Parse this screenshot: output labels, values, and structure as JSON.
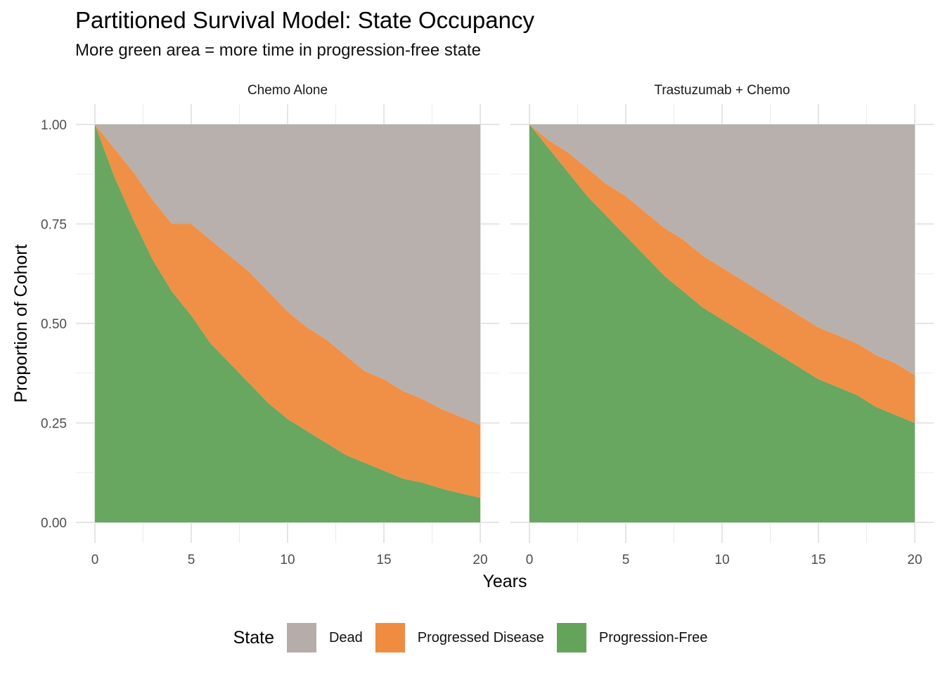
{
  "chart_data": [
    {
      "type": "area",
      "title": "Partitioned Survival Model: State Occupancy",
      "subtitle": "More green area = more time in progression-free state",
      "facet": "Chemo Alone",
      "xlabel": "Years",
      "ylabel": "Proportion of Cohort",
      "xlim": [
        0,
        20
      ],
      "ylim": [
        0,
        1
      ],
      "x_ticks": [
        "0",
        "5",
        "10",
        "15",
        "20"
      ],
      "y_ticks": [
        "0.00",
        "0.25",
        "0.50",
        "0.75",
        "1.00"
      ],
      "grid": true,
      "stacked": true,
      "x": [
        0,
        1,
        2,
        3,
        4,
        5,
        6,
        7,
        8,
        9,
        10,
        11,
        12,
        13,
        14,
        15,
        16,
        17,
        18,
        19,
        20
      ],
      "series": [
        {
          "name": "Progression-Free",
          "values": [
            1.0,
            0.87,
            0.76,
            0.66,
            0.58,
            0.52,
            0.45,
            0.4,
            0.35,
            0.3,
            0.26,
            0.23,
            0.2,
            0.17,
            0.15,
            0.13,
            0.11,
            0.1,
            0.085,
            0.073,
            0.062
          ]
        },
        {
          "name": "Progressed Disease",
          "values": [
            0.0,
            0.07,
            0.12,
            0.15,
            0.17,
            0.23,
            0.26,
            0.27,
            0.28,
            0.28,
            0.27,
            0.26,
            0.26,
            0.25,
            0.23,
            0.23,
            0.22,
            0.21,
            0.2,
            0.192,
            0.183
          ]
        },
        {
          "name": "Dead",
          "values": [
            0.0,
            0.06,
            0.12,
            0.19,
            0.25,
            0.25,
            0.29,
            0.33,
            0.37,
            0.42,
            0.47,
            0.51,
            0.54,
            0.58,
            0.62,
            0.64,
            0.67,
            0.69,
            0.715,
            0.735,
            0.755
          ]
        }
      ]
    },
    {
      "type": "area",
      "facet": "Trastuzumab + Chemo",
      "xlabel": "Years",
      "xlim": [
        0,
        20
      ],
      "ylim": [
        0,
        1
      ],
      "x_ticks": [
        "0",
        "5",
        "10",
        "15",
        "20"
      ],
      "grid": true,
      "stacked": true,
      "x": [
        0,
        1,
        2,
        3,
        4,
        5,
        6,
        7,
        8,
        9,
        10,
        11,
        12,
        13,
        14,
        15,
        16,
        17,
        18,
        19,
        20
      ],
      "series": [
        {
          "name": "Progression-Free",
          "values": [
            1.0,
            0.94,
            0.88,
            0.82,
            0.77,
            0.72,
            0.67,
            0.62,
            0.58,
            0.54,
            0.51,
            0.48,
            0.45,
            0.42,
            0.39,
            0.36,
            0.34,
            0.32,
            0.29,
            0.27,
            0.25
          ]
        },
        {
          "name": "Progressed Disease",
          "values": [
            0.0,
            0.02,
            0.05,
            0.07,
            0.08,
            0.1,
            0.11,
            0.12,
            0.13,
            0.13,
            0.13,
            0.13,
            0.13,
            0.13,
            0.13,
            0.13,
            0.13,
            0.13,
            0.13,
            0.13,
            0.12
          ]
        },
        {
          "name": "Dead",
          "values": [
            0.0,
            0.04,
            0.07,
            0.11,
            0.15,
            0.18,
            0.22,
            0.26,
            0.29,
            0.33,
            0.36,
            0.39,
            0.42,
            0.45,
            0.48,
            0.51,
            0.53,
            0.55,
            0.58,
            0.6,
            0.63
          ]
        }
      ]
    }
  ],
  "legend": {
    "title": "State",
    "position": "bottom",
    "items": [
      {
        "label": "Dead",
        "color": "#b6adaa"
      },
      {
        "label": "Progressed Disease",
        "color": "#ef8c40"
      },
      {
        "label": "Progression-Free",
        "color": "#63a45a"
      }
    ]
  }
}
